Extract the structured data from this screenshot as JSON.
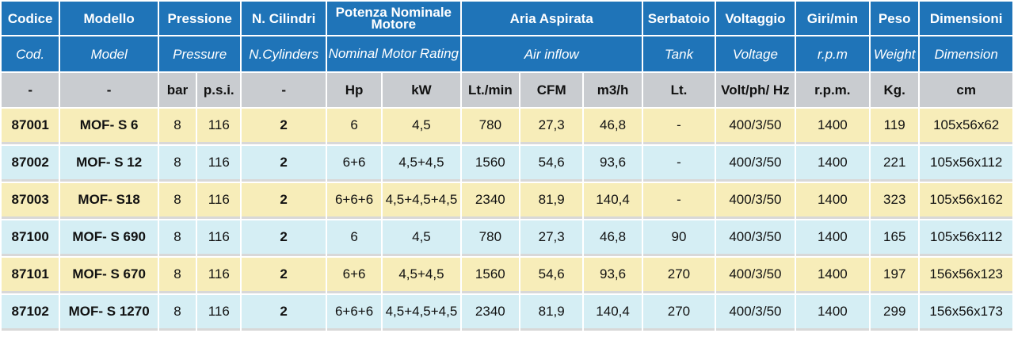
{
  "colors": {
    "header_bg": "#1f74b8",
    "unit_row_bg": "#c9ccd0",
    "row_yellow": "#f7edb9",
    "row_blue": "#d5eef4"
  },
  "header": {
    "codice": "Codice",
    "modello": "Modello",
    "pressione": "Pressione",
    "cilindri": "N. Cilindri",
    "potenza": "Potenza Nominale Motore",
    "aria": "Aria Aspirata",
    "serbatoio": "Serbatoio",
    "voltaggio": "Voltaggio",
    "giri": "Giri/min",
    "peso": "Peso",
    "dimensioni": "Dimensioni"
  },
  "header_en": {
    "codice": "Cod.",
    "modello": "Model",
    "pressione": "Pressure",
    "cilindri": "N.Cylinders",
    "potenza": "Nominal Motor Rating",
    "aria": "Air inflow",
    "serbatoio": "Tank",
    "voltaggio": "Voltage",
    "giri": "r.p.m",
    "peso": "Weight",
    "dimensioni": "Dimension"
  },
  "units": {
    "codice": "-",
    "modello": "-",
    "bar": "bar",
    "psi": "p.s.i.",
    "cilindri": "-",
    "hp": "Hp",
    "kw": "kW",
    "lt_min": "Lt./min",
    "cfm": "CFM",
    "m3h": "m3/h",
    "serbatoio": "Lt.",
    "voltaggio": "Volt/ph/ Hz",
    "giri": "r.p.m.",
    "peso": "Kg.",
    "dimensioni": "cm"
  },
  "rows": [
    {
      "code": "87001",
      "model": "MOF- S 6",
      "bar": "8",
      "psi": "116",
      "cyl": "2",
      "hp": "6",
      "kw": "4,5",
      "lt_min": "780",
      "cfm": "27,3",
      "m3h": "46,8",
      "tank": "-",
      "volt": "400/3/50",
      "rpm": "1400",
      "kg": "119",
      "dim": "105x56x62"
    },
    {
      "code": "87002",
      "model": "MOF- S 12",
      "bar": "8",
      "psi": "116",
      "cyl": "2",
      "hp": "6+6",
      "kw": "4,5+4,5",
      "lt_min": "1560",
      "cfm": "54,6",
      "m3h": "93,6",
      "tank": "-",
      "volt": "400/3/50",
      "rpm": "1400",
      "kg": "221",
      "dim": "105x56x112"
    },
    {
      "code": "87003",
      "model": "MOF- S18",
      "bar": "8",
      "psi": "116",
      "cyl": "2",
      "hp": "6+6+6",
      "kw": "4,5+4,5+4,5",
      "lt_min": "2340",
      "cfm": "81,9",
      "m3h": "140,4",
      "tank": "-",
      "volt": "400/3/50",
      "rpm": "1400",
      "kg": "323",
      "dim": "105x56x162"
    },
    {
      "code": "87100",
      "model": "MOF-  S 690",
      "bar": "8",
      "psi": "116",
      "cyl": "2",
      "hp": "6",
      "kw": "4,5",
      "lt_min": "780",
      "cfm": "27,3",
      "m3h": "46,8",
      "tank": "90",
      "volt": "400/3/50",
      "rpm": "1400",
      "kg": "165",
      "dim": "105x56x112"
    },
    {
      "code": "87101",
      "model": "MOF- S 670",
      "bar": "8",
      "psi": "116",
      "cyl": "2",
      "hp": "6+6",
      "kw": "4,5+4,5",
      "lt_min": "1560",
      "cfm": "54,6",
      "m3h": "93,6",
      "tank": "270",
      "volt": "400/3/50",
      "rpm": "1400",
      "kg": "197",
      "dim": "156x56x123"
    },
    {
      "code": "87102",
      "model": "MOF- S 1270",
      "bar": "8",
      "psi": "116",
      "cyl": "2",
      "hp": "6+6+6",
      "kw": "4,5+4,5+4,5",
      "lt_min": "2340",
      "cfm": "81,9",
      "m3h": "140,4",
      "tank": "270",
      "volt": "400/3/50",
      "rpm": "1400",
      "kg": "299",
      "dim": "156x56x173"
    }
  ]
}
